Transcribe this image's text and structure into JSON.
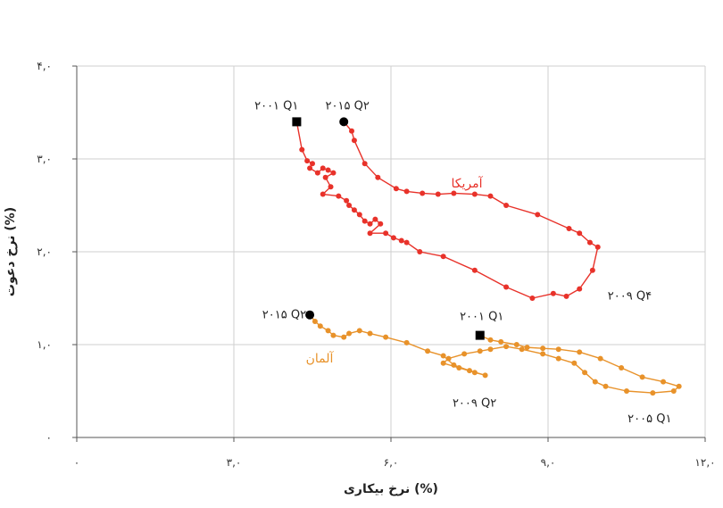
{
  "chart_data": {
    "type": "scatter",
    "xlabel": "نرخ بیکاری (%)",
    "ylabel": "نرخ دعوت (%)",
    "xlim": [
      0,
      12
    ],
    "ylim": [
      0,
      4
    ],
    "xticks": [
      0,
      3,
      6,
      9,
      12
    ],
    "yticks": [
      0,
      1,
      2,
      3,
      4
    ],
    "xtick_labels": [
      "۰",
      "۳,۰",
      "۶,۰",
      "۹,۰",
      "۱۲,۰"
    ],
    "ytick_labels": [
      "۰",
      "۱,۰",
      "۲,۰",
      "۳,۰",
      "۴,۰"
    ],
    "grid": true,
    "series": [
      {
        "name": "آمریکا",
        "color": "#e8322a",
        "points": [
          [
            4.2,
            3.4
          ],
          [
            4.3,
            3.1
          ],
          [
            4.4,
            2.98
          ],
          [
            4.5,
            2.95
          ],
          [
            4.45,
            2.9
          ],
          [
            4.6,
            2.85
          ],
          [
            4.7,
            2.9
          ],
          [
            4.8,
            2.88
          ],
          [
            4.9,
            2.85
          ],
          [
            4.75,
            2.8
          ],
          [
            4.85,
            2.7
          ],
          [
            4.7,
            2.62
          ],
          [
            5.0,
            2.6
          ],
          [
            5.15,
            2.55
          ],
          [
            5.2,
            2.5
          ],
          [
            5.3,
            2.45
          ],
          [
            5.4,
            2.4
          ],
          [
            5.5,
            2.33
          ],
          [
            5.6,
            2.3
          ],
          [
            5.7,
            2.35
          ],
          [
            5.8,
            2.3
          ],
          [
            5.6,
            2.2
          ],
          [
            5.9,
            2.2
          ],
          [
            6.05,
            2.15
          ],
          [
            6.2,
            2.12
          ],
          [
            6.3,
            2.1
          ],
          [
            6.55,
            2.0
          ],
          [
            7.0,
            1.95
          ],
          [
            7.6,
            1.8
          ],
          [
            8.2,
            1.62
          ],
          [
            8.7,
            1.5
          ],
          [
            9.1,
            1.55
          ],
          [
            9.35,
            1.52
          ],
          [
            9.6,
            1.6
          ],
          [
            9.85,
            1.8
          ],
          [
            9.95,
            2.05
          ],
          [
            9.8,
            2.1
          ],
          [
            9.6,
            2.2
          ],
          [
            9.4,
            2.25
          ],
          [
            8.8,
            2.4
          ],
          [
            8.2,
            2.5
          ],
          [
            7.9,
            2.6
          ],
          [
            7.6,
            2.62
          ],
          [
            7.2,
            2.63
          ],
          [
            6.9,
            2.62
          ],
          [
            6.6,
            2.63
          ],
          [
            6.3,
            2.65
          ],
          [
            6.1,
            2.68
          ],
          [
            5.75,
            2.8
          ],
          [
            5.5,
            2.95
          ],
          [
            5.3,
            3.2
          ],
          [
            5.25,
            3.3
          ],
          [
            5.1,
            3.4
          ]
        ]
      },
      {
        "name": "آلمان",
        "color": "#e8922a",
        "points": [
          [
            7.7,
            1.1
          ],
          [
            7.9,
            1.05
          ],
          [
            8.1,
            1.03
          ],
          [
            8.4,
            1.0
          ],
          [
            8.6,
            0.97
          ],
          [
            8.9,
            0.96
          ],
          [
            9.2,
            0.95
          ],
          [
            9.6,
            0.92
          ],
          [
            10.0,
            0.85
          ],
          [
            10.4,
            0.75
          ],
          [
            10.8,
            0.65
          ],
          [
            11.2,
            0.6
          ],
          [
            11.5,
            0.55
          ],
          [
            11.4,
            0.5
          ],
          [
            11.0,
            0.48
          ],
          [
            10.5,
            0.5
          ],
          [
            10.1,
            0.55
          ],
          [
            9.9,
            0.6
          ],
          [
            9.7,
            0.7
          ],
          [
            9.5,
            0.8
          ],
          [
            9.2,
            0.85
          ],
          [
            8.9,
            0.9
          ],
          [
            8.5,
            0.95
          ],
          [
            8.2,
            0.98
          ],
          [
            7.9,
            0.95
          ],
          [
            7.7,
            0.93
          ],
          [
            7.4,
            0.9
          ],
          [
            7.1,
            0.85
          ],
          [
            7.0,
            0.8
          ],
          [
            7.3,
            0.75
          ],
          [
            7.6,
            0.7
          ],
          [
            7.8,
            0.67
          ],
          [
            7.5,
            0.72
          ],
          [
            7.2,
            0.78
          ],
          [
            7.0,
            0.88
          ],
          [
            6.7,
            0.93
          ],
          [
            6.3,
            1.02
          ],
          [
            5.9,
            1.08
          ],
          [
            5.6,
            1.12
          ],
          [
            5.4,
            1.15
          ],
          [
            5.2,
            1.12
          ],
          [
            5.1,
            1.08
          ],
          [
            4.9,
            1.1
          ],
          [
            4.8,
            1.15
          ],
          [
            4.65,
            1.2
          ],
          [
            4.55,
            1.25
          ],
          [
            4.45,
            1.32
          ]
        ]
      }
    ],
    "annotations": [
      {
        "text": "۲۰۰۱ Q۱",
        "x": 4.2,
        "y": 3.4,
        "marker": "square",
        "series": 0
      },
      {
        "text": "۲۰۱۵ Q۲",
        "x": 5.1,
        "y": 3.4,
        "marker": "circle",
        "series": 0
      },
      {
        "text": "۲۰۰۹ Q۴",
        "x": 9.9,
        "y": 1.6,
        "marker": "none",
        "series": 0
      },
      {
        "text": "۲۰۰۱ Q۱",
        "x": 7.7,
        "y": 1.1,
        "marker": "square",
        "series": 1
      },
      {
        "text": "۲۰۱۵ Q۲",
        "x": 4.45,
        "y": 1.32,
        "marker": "circle",
        "series": 1
      },
      {
        "text": "۲۰۰۹ Q۲",
        "x": 7.8,
        "y": 0.67,
        "marker": "none",
        "series": 1
      },
      {
        "text": "۲۰۰۵ Q۱",
        "x": 11.4,
        "y": 0.5,
        "marker": "none",
        "series": 1
      }
    ]
  }
}
